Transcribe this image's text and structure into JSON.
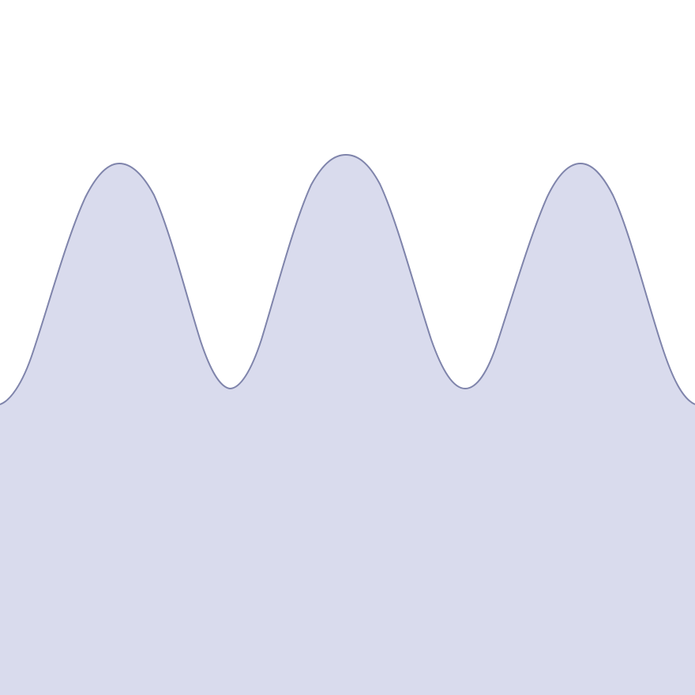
{
  "scene": {
    "description_free": true,
    "background_color": "#ffffff",
    "fill_color": "#d9dbed",
    "stroke_color": "#7f84ab"
  }
}
